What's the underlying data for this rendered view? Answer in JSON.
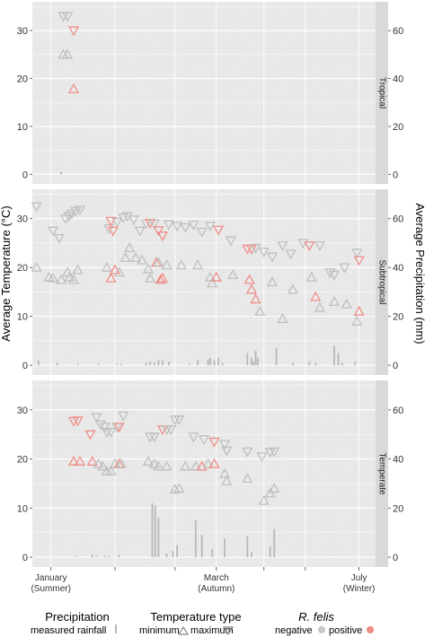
{
  "chart_data": {
    "type": "scatter",
    "ylabel": "Average Temperature (°C)",
    "y2label": "Average Precipitation (mm)",
    "ylim": [
      -2,
      36
    ],
    "y2lim": [
      -4,
      72
    ],
    "yticks": [
      0,
      10,
      20,
      30
    ],
    "y2ticks": [
      0,
      20,
      40,
      60
    ],
    "xlim": [
      0,
      8.3
    ],
    "x_tick_labels": [
      {
        "x": 0.45,
        "line1": "January",
        "line2": "(Summer)"
      },
      {
        "x": 4.45,
        "line1": "March",
        "line2": "(Autumn)"
      },
      {
        "x": 7.9,
        "line1": "July",
        "line2": "(Winter)"
      }
    ],
    "x_minor_ticks": [
      0.45,
      2.0,
      3.45,
      4.45,
      5.6,
      6.6,
      7.9
    ],
    "colors": {
      "negative": "#b8b8b8",
      "positive": "#ef8a84",
      "rain": "#b8b8b8",
      "panel_bg": "#ebebeb",
      "strip_bg": "#d9d9d9"
    },
    "panels": [
      {
        "name": "Tropical",
        "max": [
          [
            0.75,
            33
          ],
          [
            0.85,
            33
          ],
          [
            1.0,
            30,
            "positive"
          ]
        ],
        "min": [
          [
            0.75,
            25
          ],
          [
            0.85,
            25
          ],
          [
            1.0,
            17.8,
            "positive"
          ]
        ],
        "rain": [
          [
            0.7,
            1
          ]
        ]
      },
      {
        "name": "Subtropical",
        "max": [
          [
            0.1,
            32.5
          ],
          [
            0.5,
            27.5
          ],
          [
            0.65,
            26
          ],
          [
            0.8,
            30
          ],
          [
            0.88,
            30.5
          ],
          [
            0.95,
            31
          ],
          [
            1.05,
            31.5
          ],
          [
            1.15,
            31.8
          ],
          [
            1.85,
            28
          ],
          [
            1.9,
            29.5,
            "positive"
          ],
          [
            1.95,
            27.5,
            "positive"
          ],
          [
            2.05,
            29.3
          ],
          [
            2.2,
            30.2
          ],
          [
            2.3,
            30.5
          ],
          [
            2.45,
            29.8
          ],
          [
            2.6,
            27.5
          ],
          [
            2.75,
            29
          ],
          [
            2.85,
            29.1,
            "positive"
          ],
          [
            2.95,
            29
          ],
          [
            3.05,
            27.6,
            "positive"
          ],
          [
            3.15,
            26.5,
            "positive"
          ],
          [
            3.3,
            28.8
          ],
          [
            3.5,
            28.5
          ],
          [
            3.7,
            28.2
          ],
          [
            3.9,
            28.7
          ],
          [
            4.1,
            27.3
          ],
          [
            4.3,
            28.5
          ],
          [
            4.5,
            27.7,
            "positive"
          ],
          [
            4.8,
            25.5
          ],
          [
            5.2,
            23.8,
            "positive"
          ],
          [
            5.3,
            23.8,
            "positive"
          ],
          [
            5.4,
            24
          ],
          [
            5.6,
            23.2
          ],
          [
            5.8,
            22.2
          ],
          [
            6.05,
            24.5
          ],
          [
            6.25,
            22.8
          ],
          [
            6.55,
            25
          ],
          [
            6.7,
            24.5,
            "positive"
          ],
          [
            6.95,
            24.5
          ],
          [
            7.2,
            19
          ],
          [
            7.3,
            18.5
          ],
          [
            7.55,
            20
          ],
          [
            7.85,
            23
          ],
          [
            7.9,
            21.5,
            "positive"
          ]
        ],
        "min": [
          [
            0.1,
            20
          ],
          [
            0.4,
            18
          ],
          [
            0.5,
            17.8
          ],
          [
            0.7,
            17.5
          ],
          [
            0.85,
            19
          ],
          [
            0.9,
            18
          ],
          [
            1.0,
            17.5
          ],
          [
            1.1,
            19.5
          ],
          [
            1.8,
            20
          ],
          [
            1.9,
            17.8,
            "positive"
          ],
          [
            2.0,
            19.5,
            "positive"
          ],
          [
            2.1,
            19
          ],
          [
            2.25,
            22
          ],
          [
            2.35,
            24
          ],
          [
            2.5,
            22
          ],
          [
            2.65,
            21.5
          ],
          [
            2.8,
            19.7
          ],
          [
            2.85,
            17.8
          ],
          [
            3.0,
            21,
            "positive"
          ],
          [
            3.05,
            21
          ],
          [
            3.1,
            17.5,
            "positive"
          ],
          [
            3.15,
            17.8,
            "positive"
          ],
          [
            3.25,
            20.5
          ],
          [
            3.6,
            20.5
          ],
          [
            4.0,
            20.5
          ],
          [
            4.3,
            18
          ],
          [
            4.35,
            16.8
          ],
          [
            4.45,
            18,
            "positive"
          ],
          [
            4.85,
            18.5
          ],
          [
            5.25,
            17.5,
            "positive"
          ],
          [
            5.3,
            15.5,
            "positive"
          ],
          [
            5.4,
            13.5,
            "positive"
          ],
          [
            5.5,
            11
          ],
          [
            5.8,
            17
          ],
          [
            6.05,
            9.5
          ],
          [
            6.3,
            15.5
          ],
          [
            6.75,
            18
          ],
          [
            6.95,
            11.8
          ],
          [
            6.85,
            14,
            "positive"
          ],
          [
            7.3,
            13
          ],
          [
            7.6,
            12.5
          ],
          [
            7.85,
            9
          ],
          [
            7.9,
            11,
            "positive"
          ]
        ],
        "rain": [
          [
            0.15,
            2
          ],
          [
            0.6,
            1
          ],
          [
            1.1,
            0.5
          ],
          [
            1.6,
            0.5
          ],
          [
            2.05,
            0.5
          ],
          [
            2.15,
            0.5
          ],
          [
            2.75,
            1
          ],
          [
            2.85,
            1.5
          ],
          [
            2.95,
            1
          ],
          [
            3.05,
            2
          ],
          [
            3.15,
            2
          ],
          [
            3.3,
            1.5
          ],
          [
            3.8,
            0.5
          ],
          [
            4.0,
            2
          ],
          [
            4.25,
            2.5
          ],
          [
            4.3,
            3
          ],
          [
            4.4,
            2
          ],
          [
            4.5,
            3
          ],
          [
            4.6,
            1
          ],
          [
            5.2,
            5
          ],
          [
            5.3,
            3
          ],
          [
            5.35,
            1.5
          ],
          [
            5.4,
            6
          ],
          [
            5.45,
            3
          ],
          [
            5.9,
            7
          ],
          [
            6.3,
            1
          ],
          [
            6.7,
            1.5
          ],
          [
            6.85,
            1
          ],
          [
            7.3,
            8
          ],
          [
            7.4,
            5
          ],
          [
            7.5,
            1
          ],
          [
            7.8,
            1.5
          ]
        ]
      },
      {
        "name": "Temperate",
        "max": [
          [
            1.0,
            27.7,
            "positive"
          ],
          [
            1.1,
            27.8,
            "positive"
          ],
          [
            1.4,
            25,
            "positive"
          ],
          [
            1.55,
            28.5
          ],
          [
            1.65,
            27
          ],
          [
            1.75,
            26.5
          ],
          [
            1.8,
            25.5
          ],
          [
            1.9,
            25.5
          ],
          [
            2.05,
            26.5
          ],
          [
            2.1,
            26.5,
            "positive"
          ],
          [
            2.2,
            28.8
          ],
          [
            2.85,
            24.5
          ],
          [
            2.95,
            24.5
          ],
          [
            3.15,
            26,
            "positive"
          ],
          [
            3.25,
            26
          ],
          [
            3.35,
            26
          ],
          [
            3.45,
            28
          ],
          [
            3.55,
            28
          ],
          [
            3.9,
            24.5
          ],
          [
            4.15,
            24
          ],
          [
            4.4,
            23.5,
            "positive"
          ],
          [
            4.65,
            23
          ],
          [
            4.7,
            21.7
          ],
          [
            5.2,
            21.5
          ],
          [
            5.55,
            20.5
          ],
          [
            5.75,
            21.4
          ],
          [
            5.85,
            21.5
          ]
        ],
        "min": [
          [
            1.0,
            19.5,
            "positive"
          ],
          [
            1.15,
            19.5,
            "positive"
          ],
          [
            1.45,
            19.5,
            "positive"
          ],
          [
            1.6,
            19
          ],
          [
            1.7,
            18.5
          ],
          [
            1.8,
            17.5
          ],
          [
            1.9,
            17.5
          ],
          [
            2.0,
            19
          ],
          [
            2.1,
            19,
            "positive"
          ],
          [
            2.15,
            19
          ],
          [
            2.8,
            19.5
          ],
          [
            2.95,
            19
          ],
          [
            3.05,
            18.5
          ],
          [
            3.25,
            18.5
          ],
          [
            3.45,
            13.8
          ],
          [
            3.55,
            14
          ],
          [
            3.7,
            18.5
          ],
          [
            3.95,
            18.5
          ],
          [
            4.1,
            18.5,
            "positive"
          ],
          [
            4.25,
            19
          ],
          [
            4.4,
            19,
            "positive"
          ],
          [
            4.65,
            17
          ],
          [
            4.7,
            15.5
          ],
          [
            5.2,
            16
          ],
          [
            5.6,
            11.5
          ],
          [
            5.75,
            13
          ],
          [
            5.85,
            14
          ]
        ],
        "rain": [
          [
            1.05,
            0.5
          ],
          [
            1.45,
            1
          ],
          [
            1.55,
            0.5
          ],
          [
            1.75,
            0.5
          ],
          [
            1.85,
            0.5
          ],
          [
            2.1,
            1
          ],
          [
            2.9,
            22
          ],
          [
            2.97,
            21
          ],
          [
            3.05,
            16
          ],
          [
            3.25,
            1.5
          ],
          [
            3.4,
            2.5
          ],
          [
            3.5,
            5
          ],
          [
            3.95,
            15
          ],
          [
            4.1,
            9
          ],
          [
            4.35,
            3.5
          ],
          [
            4.65,
            7.5
          ],
          [
            5.2,
            8.5
          ],
          [
            5.3,
            2
          ],
          [
            5.75,
            4.5
          ],
          [
            5.85,
            11.5
          ]
        ]
      }
    ],
    "legend": {
      "precipitation_title": "Precipitation",
      "precipitation_label": "measured rainfall",
      "temperature_title": "Temperature type",
      "minimum_label": "minimum",
      "maximum_label": "maximum",
      "rfelis_title": "R. felis",
      "negative_label": "negative",
      "positive_label": "positive"
    }
  }
}
